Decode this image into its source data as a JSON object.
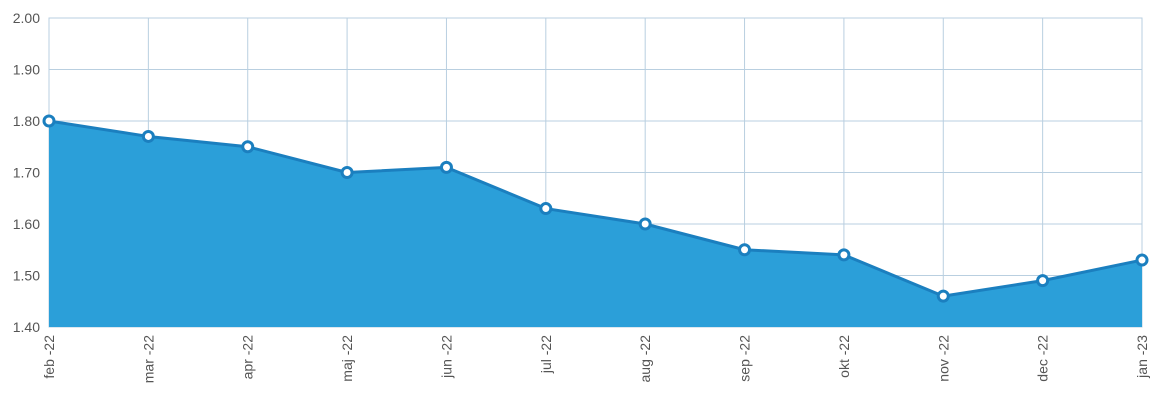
{
  "chart_data": {
    "type": "area",
    "title": "",
    "xlabel": "",
    "ylabel": "",
    "categories": [
      "feb -22",
      "mar -22",
      "apr -22",
      "maj -22",
      "jun -22",
      "jul -22",
      "aug -22",
      "sep -22",
      "okt -22",
      "nov -22",
      "dec -22",
      "jan -23"
    ],
    "series": [
      {
        "values": [
          1.8,
          1.77,
          1.75,
          1.7,
          1.71,
          1.63,
          1.6,
          1.55,
          1.54,
          1.46,
          1.49,
          1.53
        ]
      }
    ],
    "ylim": [
      1.4,
      2.0
    ],
    "yticks": [
      "1.40",
      "1.50",
      "1.60",
      "1.70",
      "1.80",
      "1.90",
      "2.00"
    ],
    "grid": true,
    "legend": "none",
    "colors": {
      "fill": "#2b9fd9",
      "line": "#1b7fbf",
      "grid": "#b9cfe0",
      "marker_fill": "#ffffff",
      "marker_stroke": "#1b7fbf"
    }
  }
}
